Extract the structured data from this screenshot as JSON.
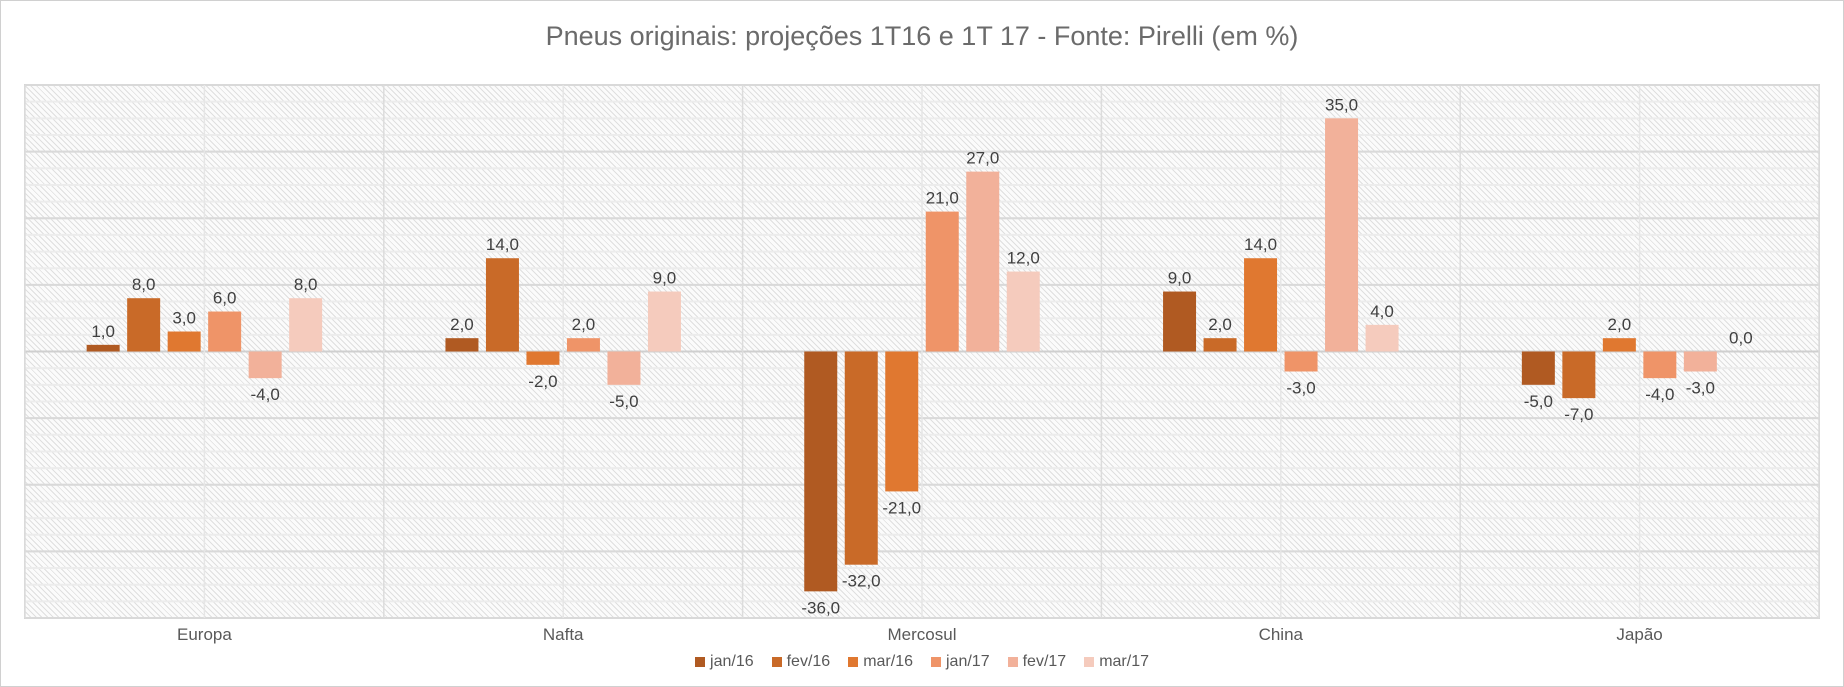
{
  "chart_data": {
    "type": "bar",
    "title": "Pneus originais: projeções 1T16 e 1T 17 - Fonte: Pirelli (em %)",
    "categories": [
      "Europa",
      "Nafta",
      "Mercosul",
      "China",
      "Japão"
    ],
    "series": [
      {
        "name": "jan/16",
        "color": "#B05A22",
        "values": [
          1,
          2,
          -36,
          9,
          -5
        ],
        "labels": [
          "1,0",
          "2,0",
          "-36,0",
          "9,0",
          "-5,0"
        ]
      },
      {
        "name": "fev/16",
        "color": "#C96A28",
        "values": [
          8,
          14,
          -32,
          2,
          -7
        ],
        "labels": [
          "8,0",
          "14,0",
          "-32,0",
          "2,0",
          "-7,0"
        ]
      },
      {
        "name": "mar/16",
        "color": "#E07830",
        "values": [
          3,
          -2,
          -21,
          14,
          2
        ],
        "labels": [
          "3,0",
          "-2,0",
          "-21,0",
          "14,0",
          "2,0"
        ]
      },
      {
        "name": "jan/17",
        "color": "#EF9468",
        "values": [
          6,
          2,
          21,
          -3,
          -4
        ],
        "labels": [
          "6,0",
          "2,0",
          "21,0",
          "-3,0",
          "-4,0"
        ]
      },
      {
        "name": "fev/17",
        "color": "#F2B19A",
        "values": [
          -4,
          -5,
          27,
          35,
          -3
        ],
        "labels": [
          "-4,0",
          "-5,0",
          "27,0",
          "35,0",
          "-3,0"
        ]
      },
      {
        "name": "mar/17",
        "color": "#F5CBBD",
        "values": [
          8,
          9,
          12,
          4,
          0
        ],
        "labels": [
          "8,0",
          "9,0",
          "12,0",
          "4,0",
          "0,0"
        ]
      }
    ],
    "ylim": [
      -40,
      40
    ],
    "gridline_step": 10,
    "xlabel": "",
    "ylabel": "",
    "grid": true,
    "legend": "bottom"
  }
}
